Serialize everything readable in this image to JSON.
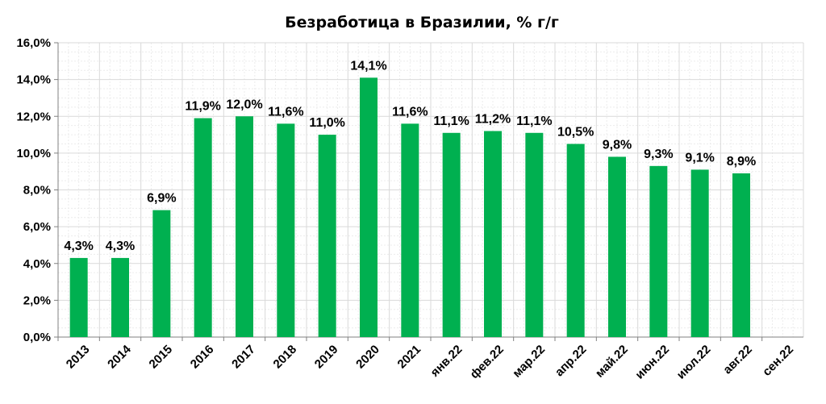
{
  "chart_data": {
    "type": "bar",
    "title": "Безработица в Бразилии, % г/г",
    "xlabel": "",
    "ylabel": "",
    "categories": [
      "2013",
      "2014",
      "2015",
      "2016",
      "2017",
      "2018",
      "2019",
      "2020",
      "2021",
      "янв.22",
      "фев.22",
      "мар.22",
      "апр.22",
      "май.22",
      "июн.22",
      "июл.22",
      "авг.22",
      "сен.22"
    ],
    "values": [
      4.3,
      4.3,
      6.9,
      11.9,
      12.0,
      11.6,
      11.0,
      14.1,
      11.6,
      11.1,
      11.2,
      11.1,
      10.5,
      9.8,
      9.3,
      9.1,
      8.9,
      null
    ],
    "data_labels": [
      "4,3%",
      "4,3%",
      "6,9%",
      "11,9%",
      "12,0%",
      "11,6%",
      "11,0%",
      "14,1%",
      "11,6%",
      "11,1%",
      "11,2%",
      "11,1%",
      "10,5%",
      "9,8%",
      "9,3%",
      "9,1%",
      "8,9%",
      ""
    ],
    "ylim": [
      0,
      16
    ],
    "yticks": [
      0,
      2,
      4,
      6,
      8,
      10,
      12,
      14,
      16
    ],
    "ytick_labels": [
      "0,0%",
      "2,0%",
      "4,0%",
      "6,0%",
      "8,0%",
      "10,0%",
      "12,0%",
      "14,0%",
      "16,0%"
    ],
    "grid": true,
    "legend": "none",
    "bar_color": "#00b050",
    "grid_color": "#d9d9d9"
  }
}
